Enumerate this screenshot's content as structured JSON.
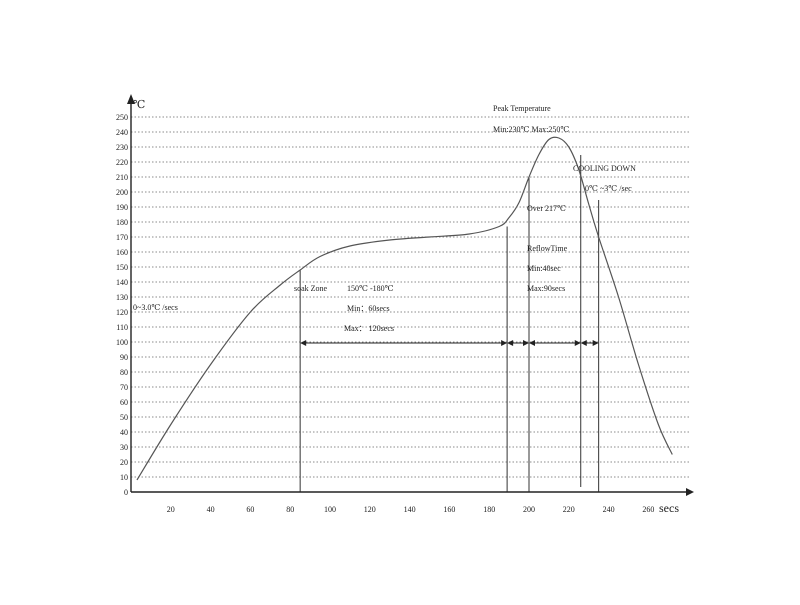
{
  "chart_data": {
    "type": "line",
    "title": "",
    "xlabel": "secs",
    "ylabel": "℃",
    "xlim": [
      0,
      280
    ],
    "ylim": [
      0,
      250
    ],
    "xticks": [
      20,
      40,
      60,
      80,
      100,
      120,
      140,
      160,
      180,
      200,
      220,
      240,
      260
    ],
    "yticks": [
      0,
      10,
      20,
      30,
      40,
      50,
      60,
      70,
      80,
      90,
      100,
      110,
      120,
      130,
      140,
      150,
      160,
      170,
      180,
      190,
      200,
      210,
      220,
      230,
      240,
      250
    ],
    "grid": "horizontal dotted",
    "series": [
      {
        "name": "",
        "points": [
          [
            3,
            8
          ],
          [
            20,
            45
          ],
          [
            40,
            85
          ],
          [
            60,
            120
          ],
          [
            75,
            138
          ],
          [
            85,
            148
          ],
          [
            95,
            157
          ],
          [
            110,
            164
          ],
          [
            130,
            168
          ],
          [
            150,
            170
          ],
          [
            170,
            172
          ],
          [
            185,
            177
          ],
          [
            190,
            183
          ],
          [
            195,
            193
          ],
          [
            200,
            210
          ],
          [
            205,
            225
          ],
          [
            210,
            235
          ],
          [
            215,
            236
          ],
          [
            220,
            230
          ],
          [
            225,
            215
          ],
          [
            230,
            192
          ],
          [
            235,
            170
          ],
          [
            245,
            130
          ],
          [
            255,
            85
          ],
          [
            265,
            45
          ],
          [
            272,
            25
          ]
        ]
      }
    ],
    "annotations": {
      "peak_title": "Peak Temperature",
      "peak_range": "Min:230℃ Max:250℃",
      "cooling_title": "COOLING DOWN",
      "cooling_rate": "0℃ ~3℃ /sec",
      "over_temp": "Over  217℃",
      "reflow_title": "ReflowTime",
      "reflow_min": "Min:40sec",
      "reflow_max": "Max:90secs",
      "ramp_rate": "0~3.0℃ /secs",
      "soak_zone": "soak Zone",
      "soak_range": "150℃ -180℃",
      "soak_min": "Min：60secs",
      "soak_max": "Max： 120secs"
    },
    "markers_x": [
      85,
      189,
      200,
      226,
      235
    ]
  }
}
